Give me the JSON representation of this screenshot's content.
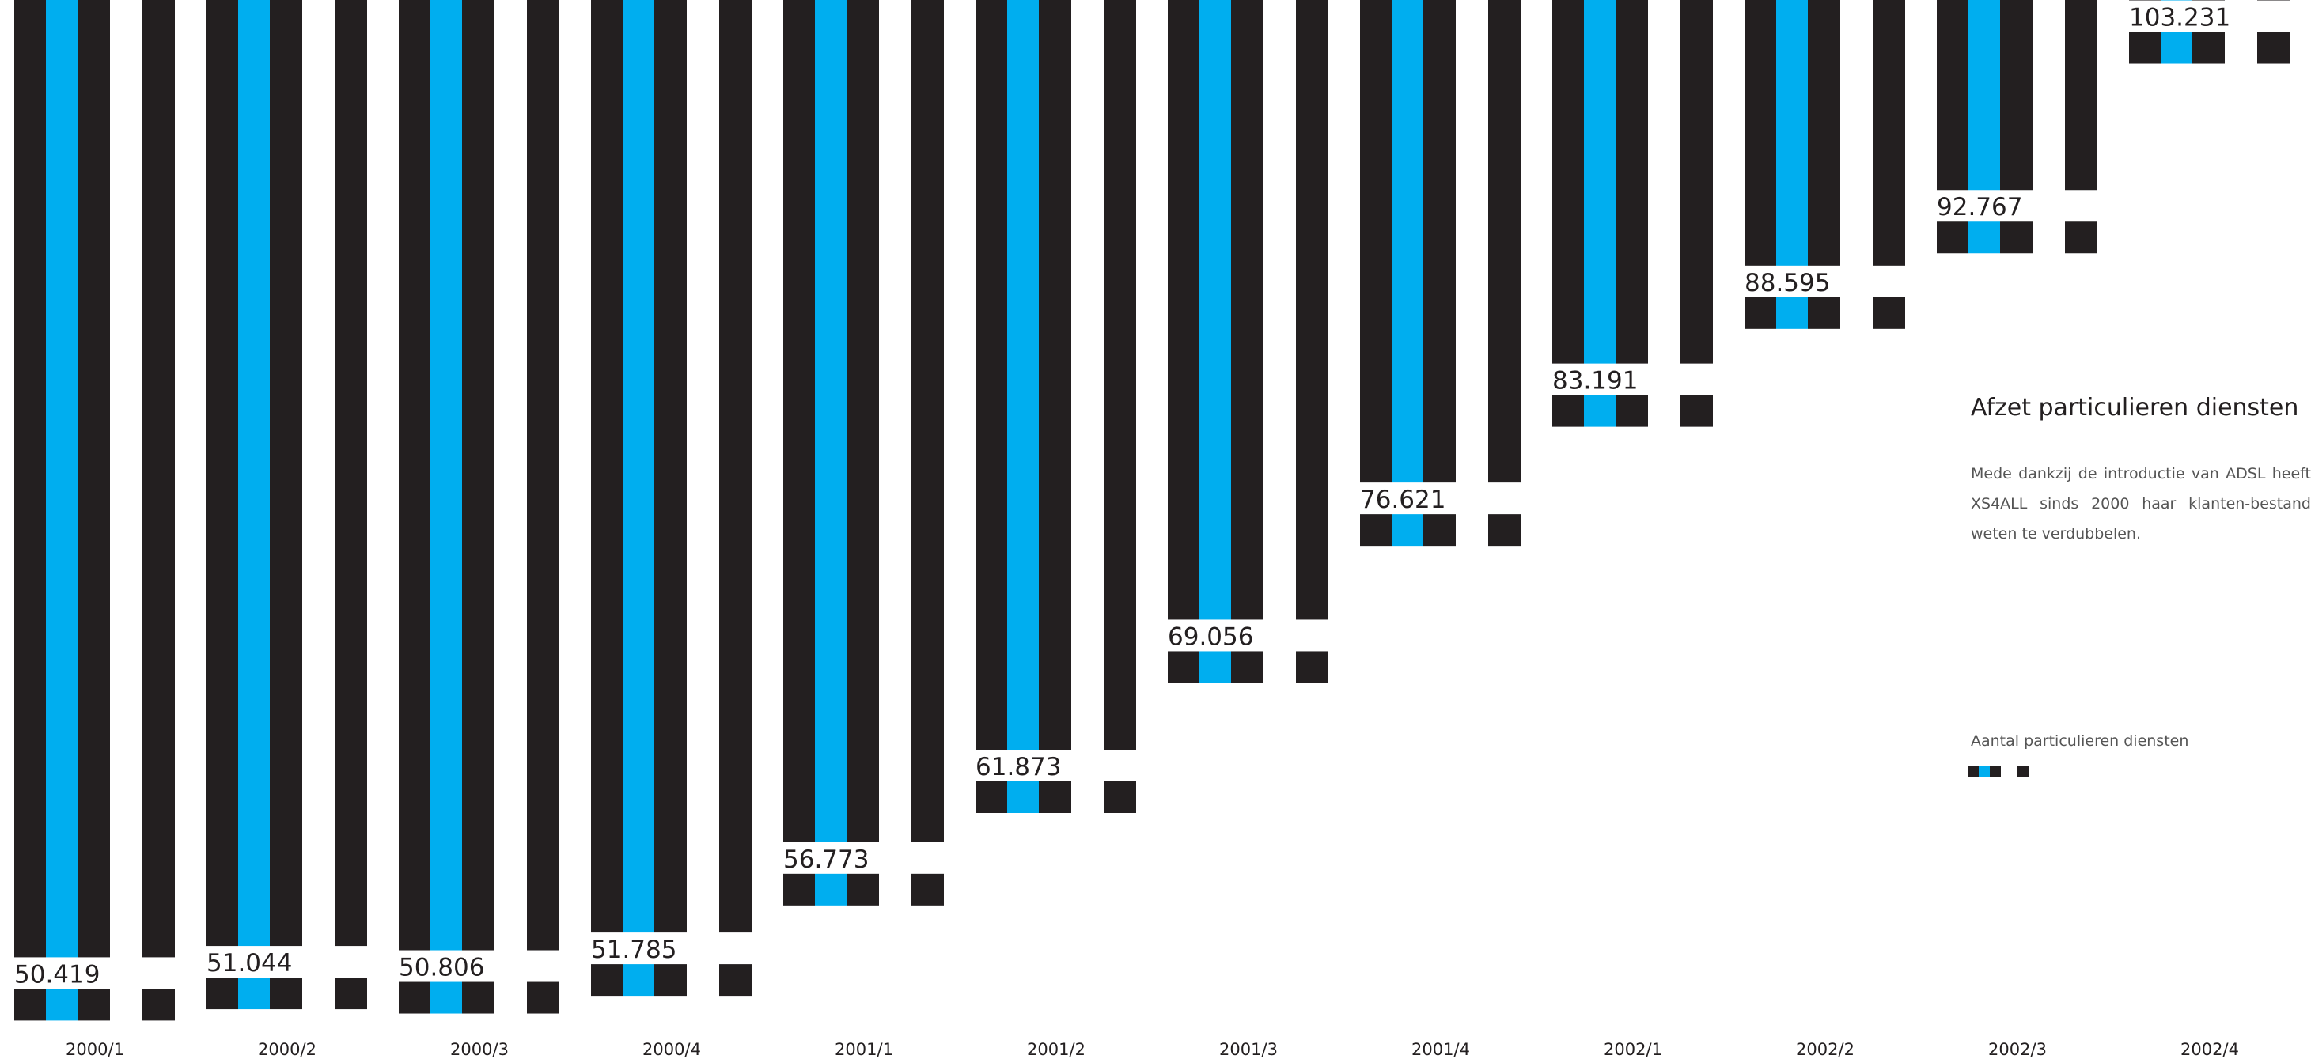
{
  "chart_data": {
    "type": "bar",
    "title": "",
    "xlabel": "",
    "ylabel": "",
    "categories": [
      "2000/1",
      "2000/2",
      "2000/3",
      "2000/4",
      "2001/1",
      "2001/2",
      "2001/3",
      "2001/4",
      "2002/1",
      "2002/2",
      "2002/3",
      "2002/4"
    ],
    "value_labels": [
      "50.419",
      "51.044",
      "50.806",
      "51.785",
      "56.773",
      "61.873",
      "69.056",
      "76.621",
      "83.191",
      "88.595",
      "92.767",
      "103.231"
    ],
    "series": [
      {
        "name": "Aantal particulieren diensten",
        "values": [
          50419,
          51044,
          50806,
          51785,
          56773,
          61873,
          69056,
          76621,
          83191,
          88595,
          92767,
          103231
        ]
      }
    ],
    "colors": {
      "dark": "#231f20",
      "accent": "#00aeef"
    }
  },
  "text": {
    "heading": "Afzet particulieren diensten",
    "description": "Mede dankzij de introductie van ADSL heeft XS4ALL sinds 2000 haar klanten-bestand  weten te verdubbelen.",
    "legend_label": "Aantal particulieren diensten"
  }
}
